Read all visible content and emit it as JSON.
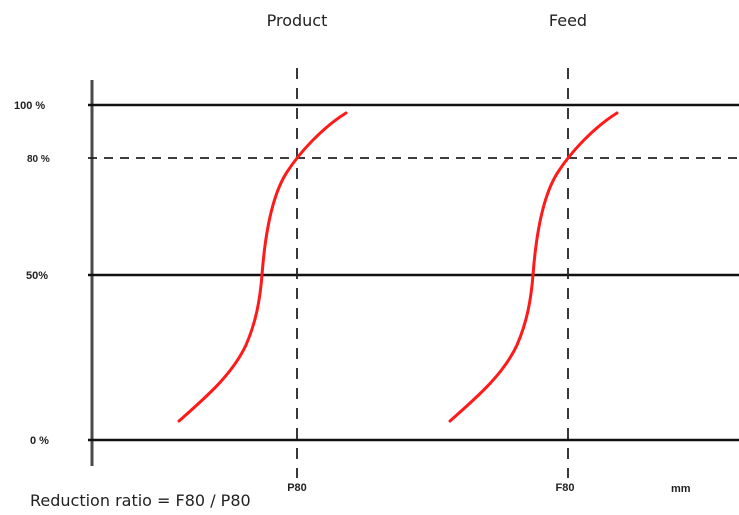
{
  "titles": {
    "product": "Product",
    "feed": "Feed"
  },
  "levels": {
    "full": "100 %",
    "eighty": "80 %",
    "half": "50%",
    "zero": "0 %"
  },
  "markers": {
    "product": "P80",
    "feed": "F80"
  },
  "unit": "mm",
  "formula": "Reduction ratio = F80 / P80",
  "colors": {
    "curve": "#ff1a1a",
    "line": "#111111"
  }
}
